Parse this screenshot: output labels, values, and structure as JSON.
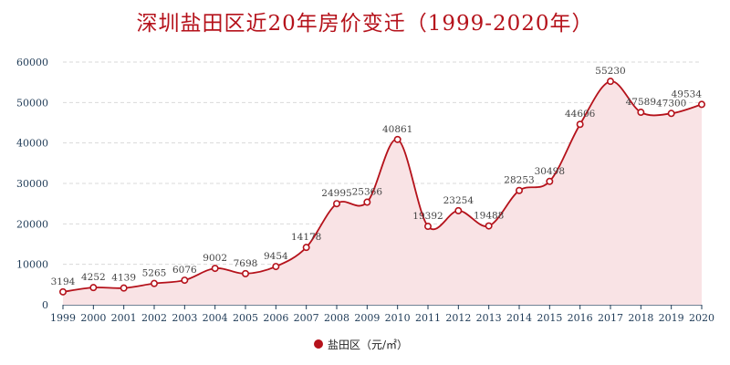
{
  "title": "深圳盐田区近20年房价变迁（1999-2020年）",
  "colors": {
    "title": "#b5121b",
    "line": "#b5121b",
    "area_fill": "#f9e3e5",
    "axis": "#1f3b57",
    "grid": "#d9d9d9",
    "label": "#444444",
    "marker_fill": "#ffffff"
  },
  "chart_data": {
    "type": "area",
    "title": "深圳盐田区近20年房价变迁（1999-2020年）",
    "xlabel": "",
    "ylabel": "",
    "categories": [
      "1999",
      "2000",
      "2001",
      "2002",
      "2003",
      "2004",
      "2005",
      "2006",
      "2007",
      "2008",
      "2009",
      "2010",
      "2011",
      "2012",
      "2013",
      "2014",
      "2015",
      "2016",
      "2017",
      "2018",
      "2019",
      "2020"
    ],
    "series": [
      {
        "name": "盐田区（元/㎡）",
        "values": [
          3194,
          4252,
          4139,
          5265,
          6076,
          9002,
          7698,
          9454,
          14178,
          24995,
          25366,
          40861,
          19392,
          23254,
          19488,
          28253,
          30498,
          44606,
          55230,
          47589,
          47300,
          49534
        ],
        "labels": [
          "3194",
          "4252",
          "4139",
          "5265",
          "6076",
          "9002",
          "7698",
          "9454",
          "14178",
          "24995",
          "25366",
          "40861",
          "19392",
          "23254",
          "19488",
          "28253",
          "30498",
          "44606",
          "55230",
          "47589",
          "47300",
          "49534"
        ]
      }
    ],
    "ylim": [
      0,
      60000
    ],
    "yticks": [
      0,
      10000,
      20000,
      30000,
      40000,
      50000,
      60000
    ],
    "grid": true,
    "smooth": true,
    "legend_position": "bottom-center"
  }
}
